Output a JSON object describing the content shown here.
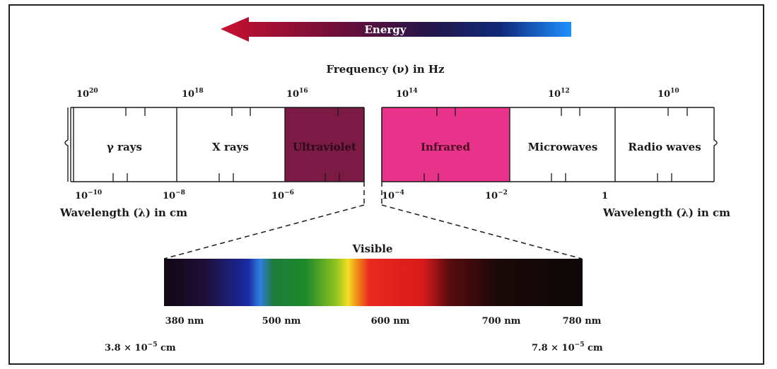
{
  "energy_arrow": {
    "label": "Energy"
  },
  "frequency_title": "Frequency (ν) in Hz",
  "frequency_ticks": [
    {
      "base": "10",
      "exp": "20"
    },
    {
      "base": "10",
      "exp": "18"
    },
    {
      "base": "10",
      "exp": "16"
    },
    {
      "base": "10",
      "exp": "14"
    },
    {
      "base": "10",
      "exp": "12"
    },
    {
      "base": "10",
      "exp": "10"
    }
  ],
  "bands": [
    {
      "label": "γ rays",
      "color": "#ffffff"
    },
    {
      "label": "X rays",
      "color": "#ffffff"
    },
    {
      "label": "Ultraviolet",
      "color": "#7a1a45"
    },
    {
      "label": "Infrared",
      "color": "#e8338a"
    },
    {
      "label": "Microwaves",
      "color": "#ffffff"
    },
    {
      "label": "Radio waves",
      "color": "#ffffff"
    }
  ],
  "wavelength_ticks": [
    {
      "base": "10",
      "exp": "−10"
    },
    {
      "base": "10",
      "exp": "−8"
    },
    {
      "base": "10",
      "exp": "−6"
    },
    {
      "base": "10",
      "exp": "−4"
    },
    {
      "base": "10",
      "exp": "−2"
    },
    {
      "base": "1",
      "exp": ""
    }
  ],
  "wavelength_label_left": "Wavelength (λ) in cm",
  "wavelength_label_right": "Wavelength (λ) in cm",
  "visible": {
    "title": "Visible",
    "ticks": [
      "380 nm",
      "500 nm",
      "600 nm",
      "700 nm",
      "780 nm"
    ],
    "left_cm": {
      "prefix": "3.8 × 10",
      "exp": "−5",
      "suffix": " cm"
    },
    "right_cm": {
      "prefix": "7.8 × 10",
      "exp": "−5",
      "suffix": " cm"
    }
  }
}
